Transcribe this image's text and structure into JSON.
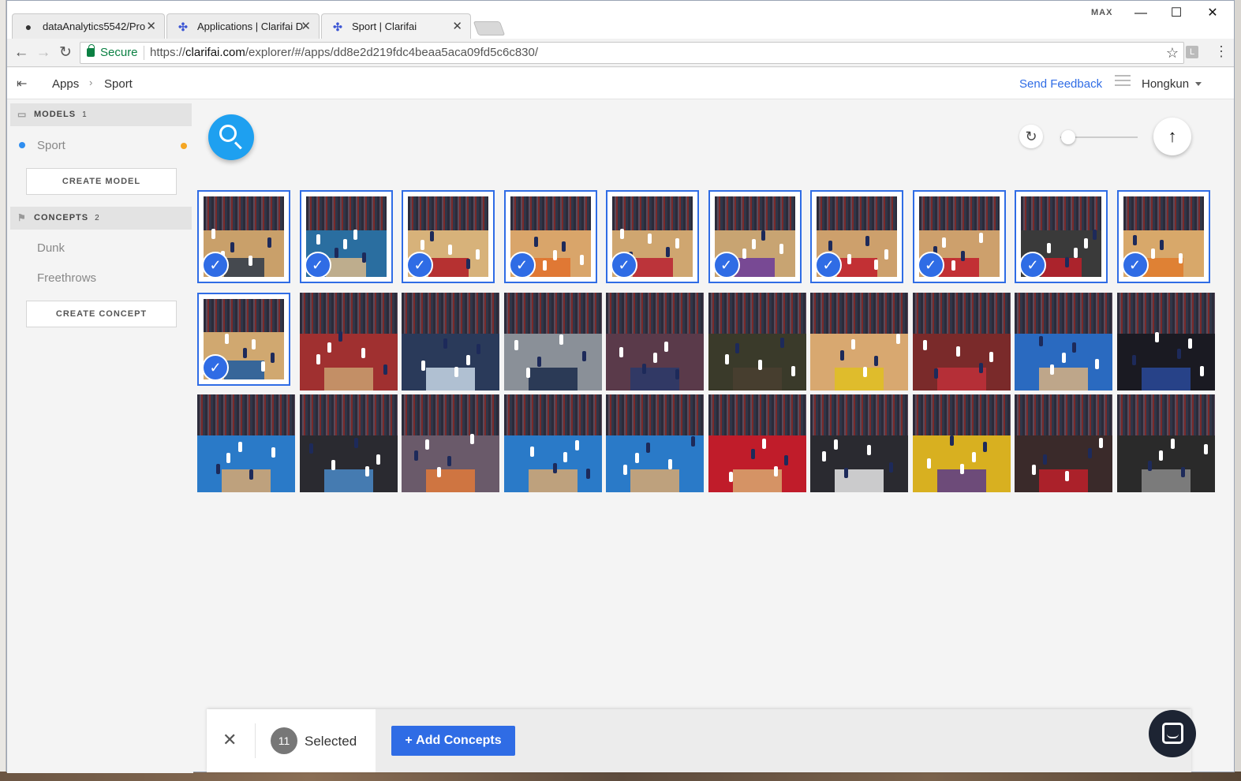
{
  "browser": {
    "tabs": [
      {
        "label": "dataAnalytics5542/Pro",
        "icon": "github-icon",
        "active": false
      },
      {
        "label": "Applications | Clarifai D",
        "icon": "clarifai-icon",
        "active": false
      },
      {
        "label": "Sport | Clarifai",
        "icon": "clarifai-icon",
        "active": true
      }
    ],
    "window_label": "MAX",
    "secure_label": "Secure",
    "url_scheme": "https://",
    "url_host": "clarifai.com",
    "url_path": "/explorer/#/apps/dd8e2d219fdc4beaa5aca09fd5c6c830/",
    "extension_badge": "L"
  },
  "header": {
    "breadcrumb": [
      "Apps",
      "Sport"
    ],
    "send_feedback": "Send Feedback",
    "user_name": "Hongkun"
  },
  "sidebar": {
    "models_title": "MODELS",
    "models_count": "1",
    "models": [
      {
        "label": "Sport",
        "dot_color": "#2f8ef0",
        "status_color": "#f5a623"
      }
    ],
    "create_model": "CREATE MODEL",
    "concepts_title": "CONCEPTS",
    "concepts_count": "2",
    "concepts": [
      {
        "label": "Dunk"
      },
      {
        "label": "Freethrows"
      }
    ],
    "create_concept": "CREATE CONCEPT"
  },
  "controls": {
    "zoom_level": 0.1
  },
  "grid": {
    "rows": [
      [
        {
          "selected": true,
          "court": "#c9a06a",
          "paint": "#2e3a4a"
        },
        {
          "selected": true,
          "court": "#2a6ea0",
          "paint": "#d8b88a"
        },
        {
          "selected": true,
          "court": "#d7b27a",
          "paint": "#b01a24"
        },
        {
          "selected": true,
          "court": "#d9a56a",
          "paint": "#e0702a"
        },
        {
          "selected": true,
          "court": "#cfa670",
          "paint": "#b82030"
        },
        {
          "selected": true,
          "court": "#c8a472",
          "paint": "#6a3a9a"
        },
        {
          "selected": true,
          "court": "#cda06c",
          "paint": "#c01c2a"
        },
        {
          "selected": true,
          "court": "#cda06c",
          "paint": "#c01c2a"
        },
        {
          "selected": true,
          "court": "#3a3a3a",
          "paint": "#c0202a"
        },
        {
          "selected": true,
          "court": "#d8a86a",
          "paint": "#e07a2a"
        }
      ],
      [
        {
          "selected": true,
          "court": "#d0a870",
          "paint": "#1c5aa0"
        },
        {
          "selected": false,
          "court": "#a03030",
          "paint": "#c9a070"
        },
        {
          "selected": false,
          "court": "#2a3a5a",
          "paint": "#c8d8e8"
        },
        {
          "selected": false,
          "court": "#8a9098",
          "paint": "#1a2c4a"
        },
        {
          "selected": false,
          "court": "#5a3a4a",
          "paint": "#2a3a6a"
        },
        {
          "selected": false,
          "court": "#3a3a2a",
          "paint": "#4a4030"
        },
        {
          "selected": false,
          "court": "#d8a870",
          "paint": "#e0c020"
        },
        {
          "selected": false,
          "court": "#7a2a2a",
          "paint": "#c0303a"
        },
        {
          "selected": false,
          "court": "#2a6ac0",
          "paint": "#d8b080"
        },
        {
          "selected": false,
          "court": "#1a1a22",
          "paint": "#2a4a9a"
        }
      ],
      [
        {
          "selected": false,
          "court": "#2a7ac8",
          "paint": "#d8a870"
        },
        {
          "selected": false,
          "court": "#2a2a30",
          "paint": "#4a8ac8"
        },
        {
          "selected": false,
          "court": "#6a5a6a",
          "paint": "#e07a3a"
        },
        {
          "selected": false,
          "court": "#2a7ac8",
          "paint": "#d8a870"
        },
        {
          "selected": false,
          "court": "#2a7ac8",
          "paint": "#d8a870"
        },
        {
          "selected": false,
          "court": "#c01c2a",
          "paint": "#d8a870"
        },
        {
          "selected": false,
          "court": "#2a2a30",
          "paint": "#e8e8e8"
        },
        {
          "selected": false,
          "court": "#d8b020",
          "paint": "#5a3a8a"
        },
        {
          "selected": false,
          "court": "#3a2a2a",
          "paint": "#c0202a"
        },
        {
          "selected": false,
          "court": "#2a2a2a",
          "paint": "#8a8a8a"
        }
      ]
    ]
  },
  "selection_bar": {
    "count": "11",
    "label": "Selected",
    "add_concepts_label": "Add Concepts"
  },
  "colors": {
    "accent": "#2f6ce5",
    "fab": "#1ea0f0"
  }
}
